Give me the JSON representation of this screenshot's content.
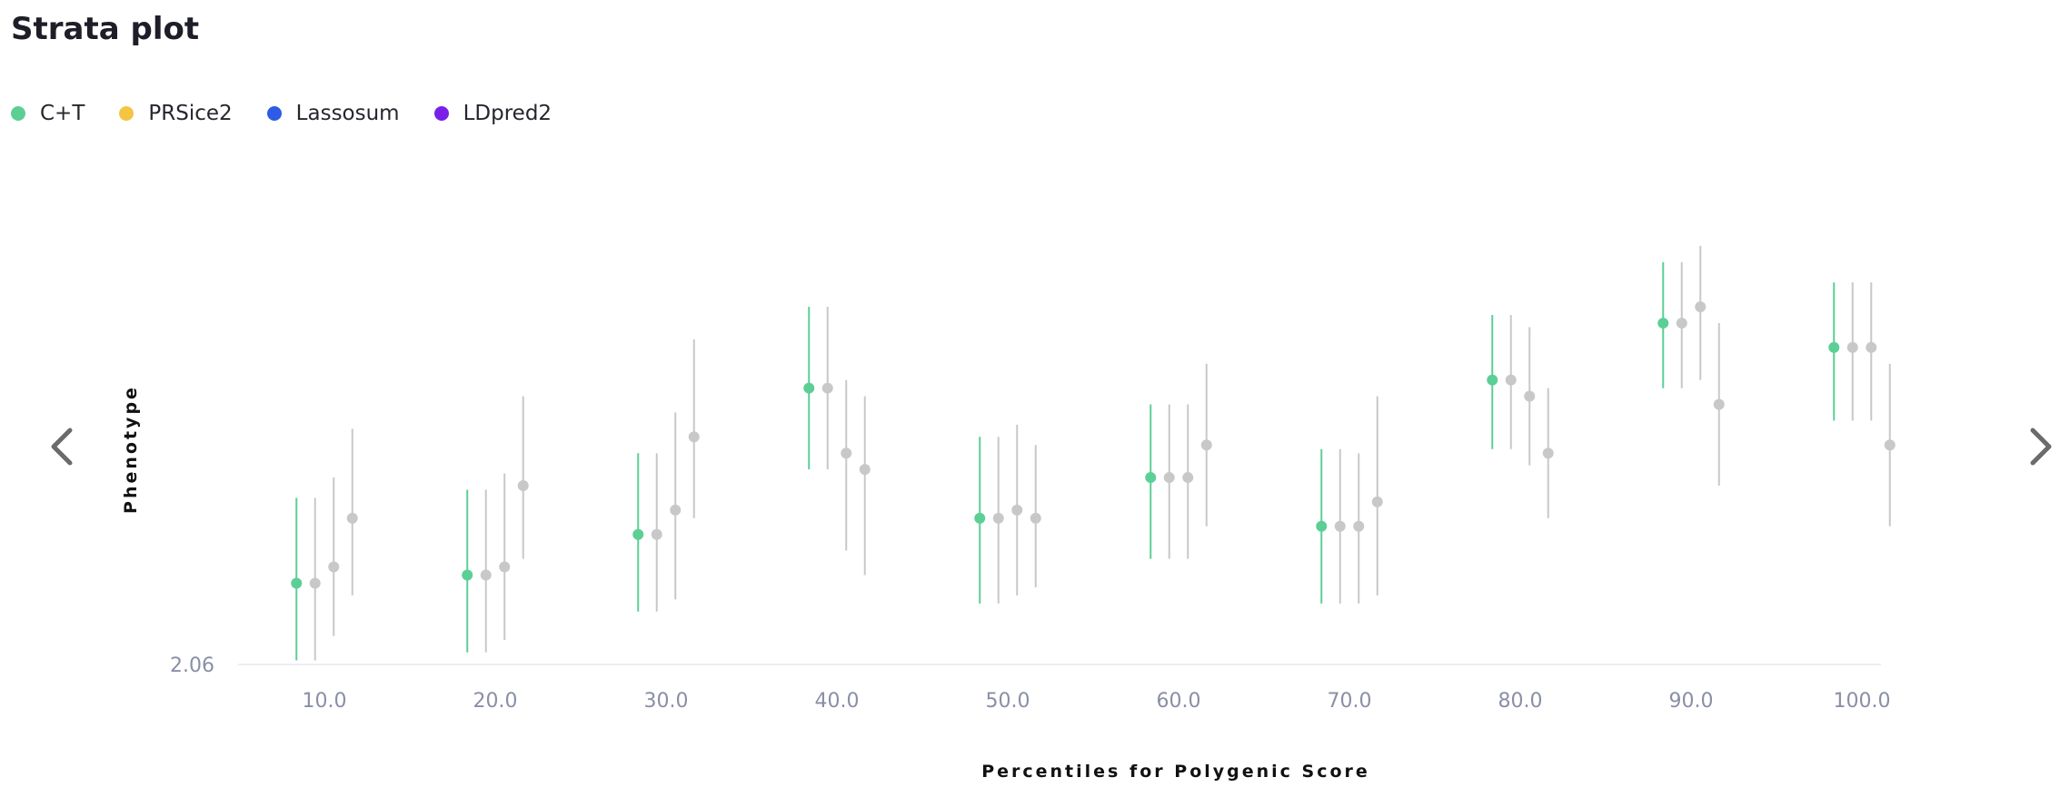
{
  "title": "Strata plot",
  "legend": [
    {
      "label": "C+T",
      "color": "#5ccf95"
    },
    {
      "label": "PRSice2",
      "color": "#f4c542"
    },
    {
      "label": "Lassosum",
      "color": "#2f5be6"
    },
    {
      "label": "LDpred2",
      "color": "#7a1fe8"
    }
  ],
  "nav": {
    "prev_icon": "chevron-left-icon",
    "next_icon": "chevron-right-icon"
  },
  "chart_data": {
    "type": "scatter",
    "title": "Strata plot",
    "xlabel": "Percentiles for Polygenic Score",
    "ylabel": "Phenotype",
    "categories": [
      "10.0",
      "20.0",
      "30.0",
      "40.0",
      "50.0",
      "60.0",
      "70.0",
      "80.0",
      "90.0",
      "100.0"
    ],
    "y_tick_labels": [
      "2.06"
    ],
    "ylim": [
      2.06,
      2.71
    ],
    "active_series_color": "#5ccf95",
    "inactive_series_color": "#c8c8c8",
    "series": [
      {
        "name": "C+T",
        "active": true,
        "mean": [
          2.16,
          2.17,
          2.22,
          2.4,
          2.24,
          2.29,
          2.23,
          2.41,
          2.48,
          2.45
        ],
        "lower": [
          2.065,
          2.075,
          2.125,
          2.3,
          2.135,
          2.19,
          2.135,
          2.325,
          2.4,
          2.36
        ],
        "upper": [
          2.265,
          2.275,
          2.32,
          2.5,
          2.34,
          2.38,
          2.325,
          2.49,
          2.555,
          2.53
        ]
      },
      {
        "name": "PRSice2",
        "active": false,
        "mean": [
          2.16,
          2.17,
          2.22,
          2.4,
          2.24,
          2.29,
          2.23,
          2.41,
          2.48,
          2.45
        ],
        "lower": [
          2.065,
          2.075,
          2.125,
          2.3,
          2.135,
          2.19,
          2.135,
          2.325,
          2.4,
          2.36
        ],
        "upper": [
          2.265,
          2.275,
          2.32,
          2.5,
          2.34,
          2.38,
          2.325,
          2.49,
          2.555,
          2.53
        ]
      },
      {
        "name": "Lassosum",
        "active": false,
        "mean": [
          2.18,
          2.18,
          2.25,
          2.32,
          2.25,
          2.29,
          2.23,
          2.39,
          2.5,
          2.45
        ],
        "lower": [
          2.095,
          2.09,
          2.14,
          2.2,
          2.145,
          2.19,
          2.135,
          2.305,
          2.41,
          2.36
        ],
        "upper": [
          2.29,
          2.295,
          2.37,
          2.41,
          2.355,
          2.38,
          2.32,
          2.475,
          2.575,
          2.53
        ]
      },
      {
        "name": "LDpred2",
        "active": false,
        "mean": [
          2.24,
          2.28,
          2.34,
          2.3,
          2.24,
          2.33,
          2.26,
          2.32,
          2.38,
          2.33
        ],
        "lower": [
          2.145,
          2.19,
          2.24,
          2.17,
          2.155,
          2.23,
          2.145,
          2.24,
          2.28,
          2.23
        ],
        "upper": [
          2.35,
          2.39,
          2.46,
          2.39,
          2.33,
          2.43,
          2.39,
          2.4,
          2.48,
          2.43
        ]
      }
    ]
  }
}
